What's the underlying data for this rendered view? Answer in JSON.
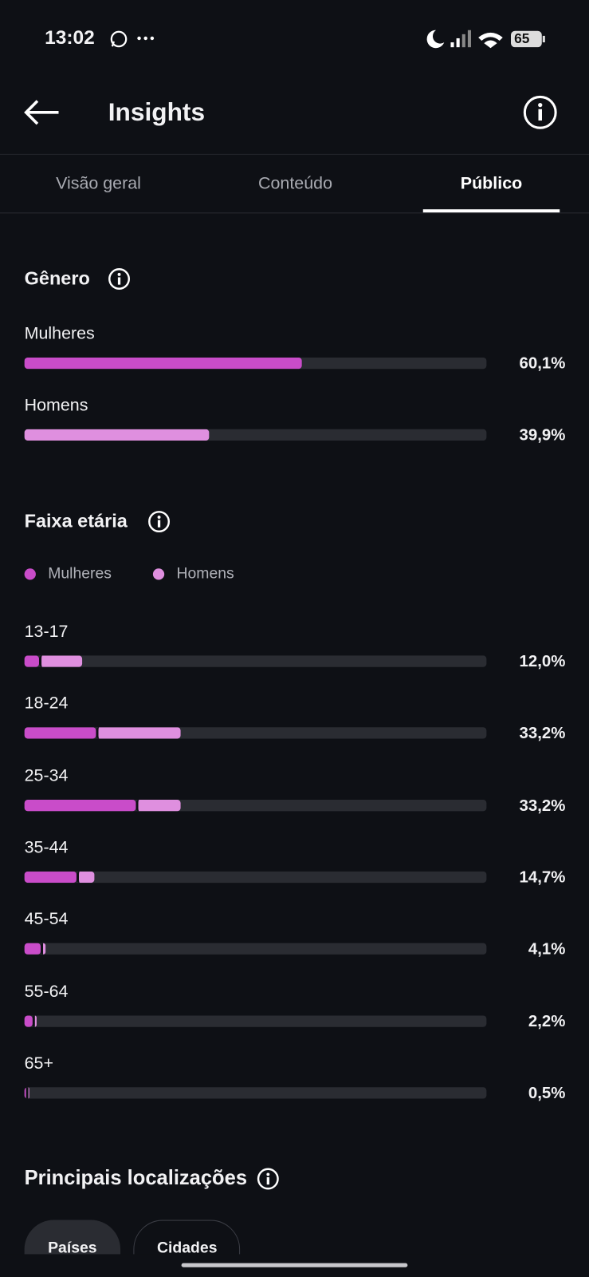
{
  "status_bar": {
    "time": "13:02",
    "battery": "65"
  },
  "header": {
    "title": "Insights"
  },
  "tabs": [
    {
      "label": "Visão geral",
      "selected": false
    },
    {
      "label": "Conteúdo",
      "selected": false
    },
    {
      "label": "Público",
      "selected": true
    }
  ],
  "gender": {
    "title": "Gênero",
    "rows": [
      {
        "label": "Mulheres",
        "value": 60.1,
        "value_label": "60,1%",
        "color": "#c94cc9"
      },
      {
        "label": "Homens",
        "value": 39.9,
        "value_label": "39,9%",
        "color": "#df8fdf"
      }
    ]
  },
  "age": {
    "title": "Faixa etária",
    "legend": [
      {
        "label": "Mulheres",
        "color": "#c94cc9"
      },
      {
        "label": "Homens",
        "color": "#df8fdf"
      }
    ],
    "rows": [
      {
        "label": "13-17",
        "women": 3.2,
        "men": 8.8,
        "value_label": "12,0%"
      },
      {
        "label": "18-24",
        "women": 15.5,
        "men": 17.7,
        "value_label": "33,2%"
      },
      {
        "label": "25-34",
        "women": 24.2,
        "men": 9.0,
        "value_label": "33,2%"
      },
      {
        "label": "35-44",
        "women": 11.3,
        "men": 3.4,
        "value_label": "14,7%"
      },
      {
        "label": "45-54",
        "women": 3.5,
        "men": 0.6,
        "value_label": "4,1%"
      },
      {
        "label": "55-64",
        "women": 1.8,
        "men": 0.4,
        "value_label": "2,2%"
      },
      {
        "label": "65+",
        "women": 0.3,
        "men": 0.2,
        "value_label": "0,5%"
      }
    ]
  },
  "locations": {
    "title": "Principais localizações",
    "buttons": [
      "Países",
      "Cidades"
    ]
  }
}
